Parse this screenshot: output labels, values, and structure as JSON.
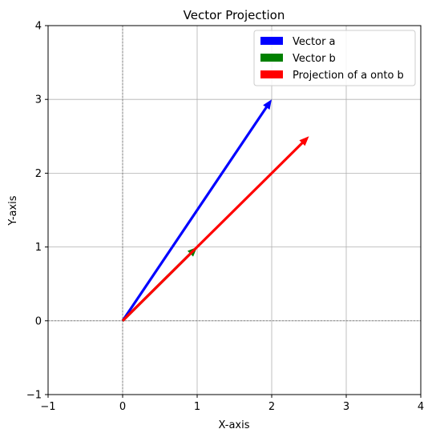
{
  "chart_data": {
    "type": "vector",
    "title": "Vector Projection",
    "xlabel": "X-axis",
    "ylabel": "Y-axis",
    "xlim": [
      -1,
      4
    ],
    "ylim": [
      -1,
      4
    ],
    "xticks": [
      -1,
      0,
      1,
      2,
      3,
      4
    ],
    "yticks": [
      -1,
      0,
      1,
      2,
      3,
      4
    ],
    "xtick_labels": [
      "−1",
      "0",
      "1",
      "2",
      "3",
      "4"
    ],
    "ytick_labels": [
      "−1",
      "0",
      "1",
      "2",
      "3",
      "4"
    ],
    "grid": true,
    "legend_position": "top-right",
    "series": [
      {
        "name": "Vector a",
        "color": "#0000ff",
        "origin": [
          0,
          0
        ],
        "vector": [
          2,
          3
        ]
      },
      {
        "name": "Vector b",
        "color": "#008000",
        "origin": [
          0,
          0
        ],
        "vector": [
          1,
          1
        ]
      },
      {
        "name": "Projection of a onto b",
        "color": "#ff0000",
        "origin": [
          0,
          0
        ],
        "vector": [
          2.5,
          2.5
        ]
      }
    ]
  }
}
